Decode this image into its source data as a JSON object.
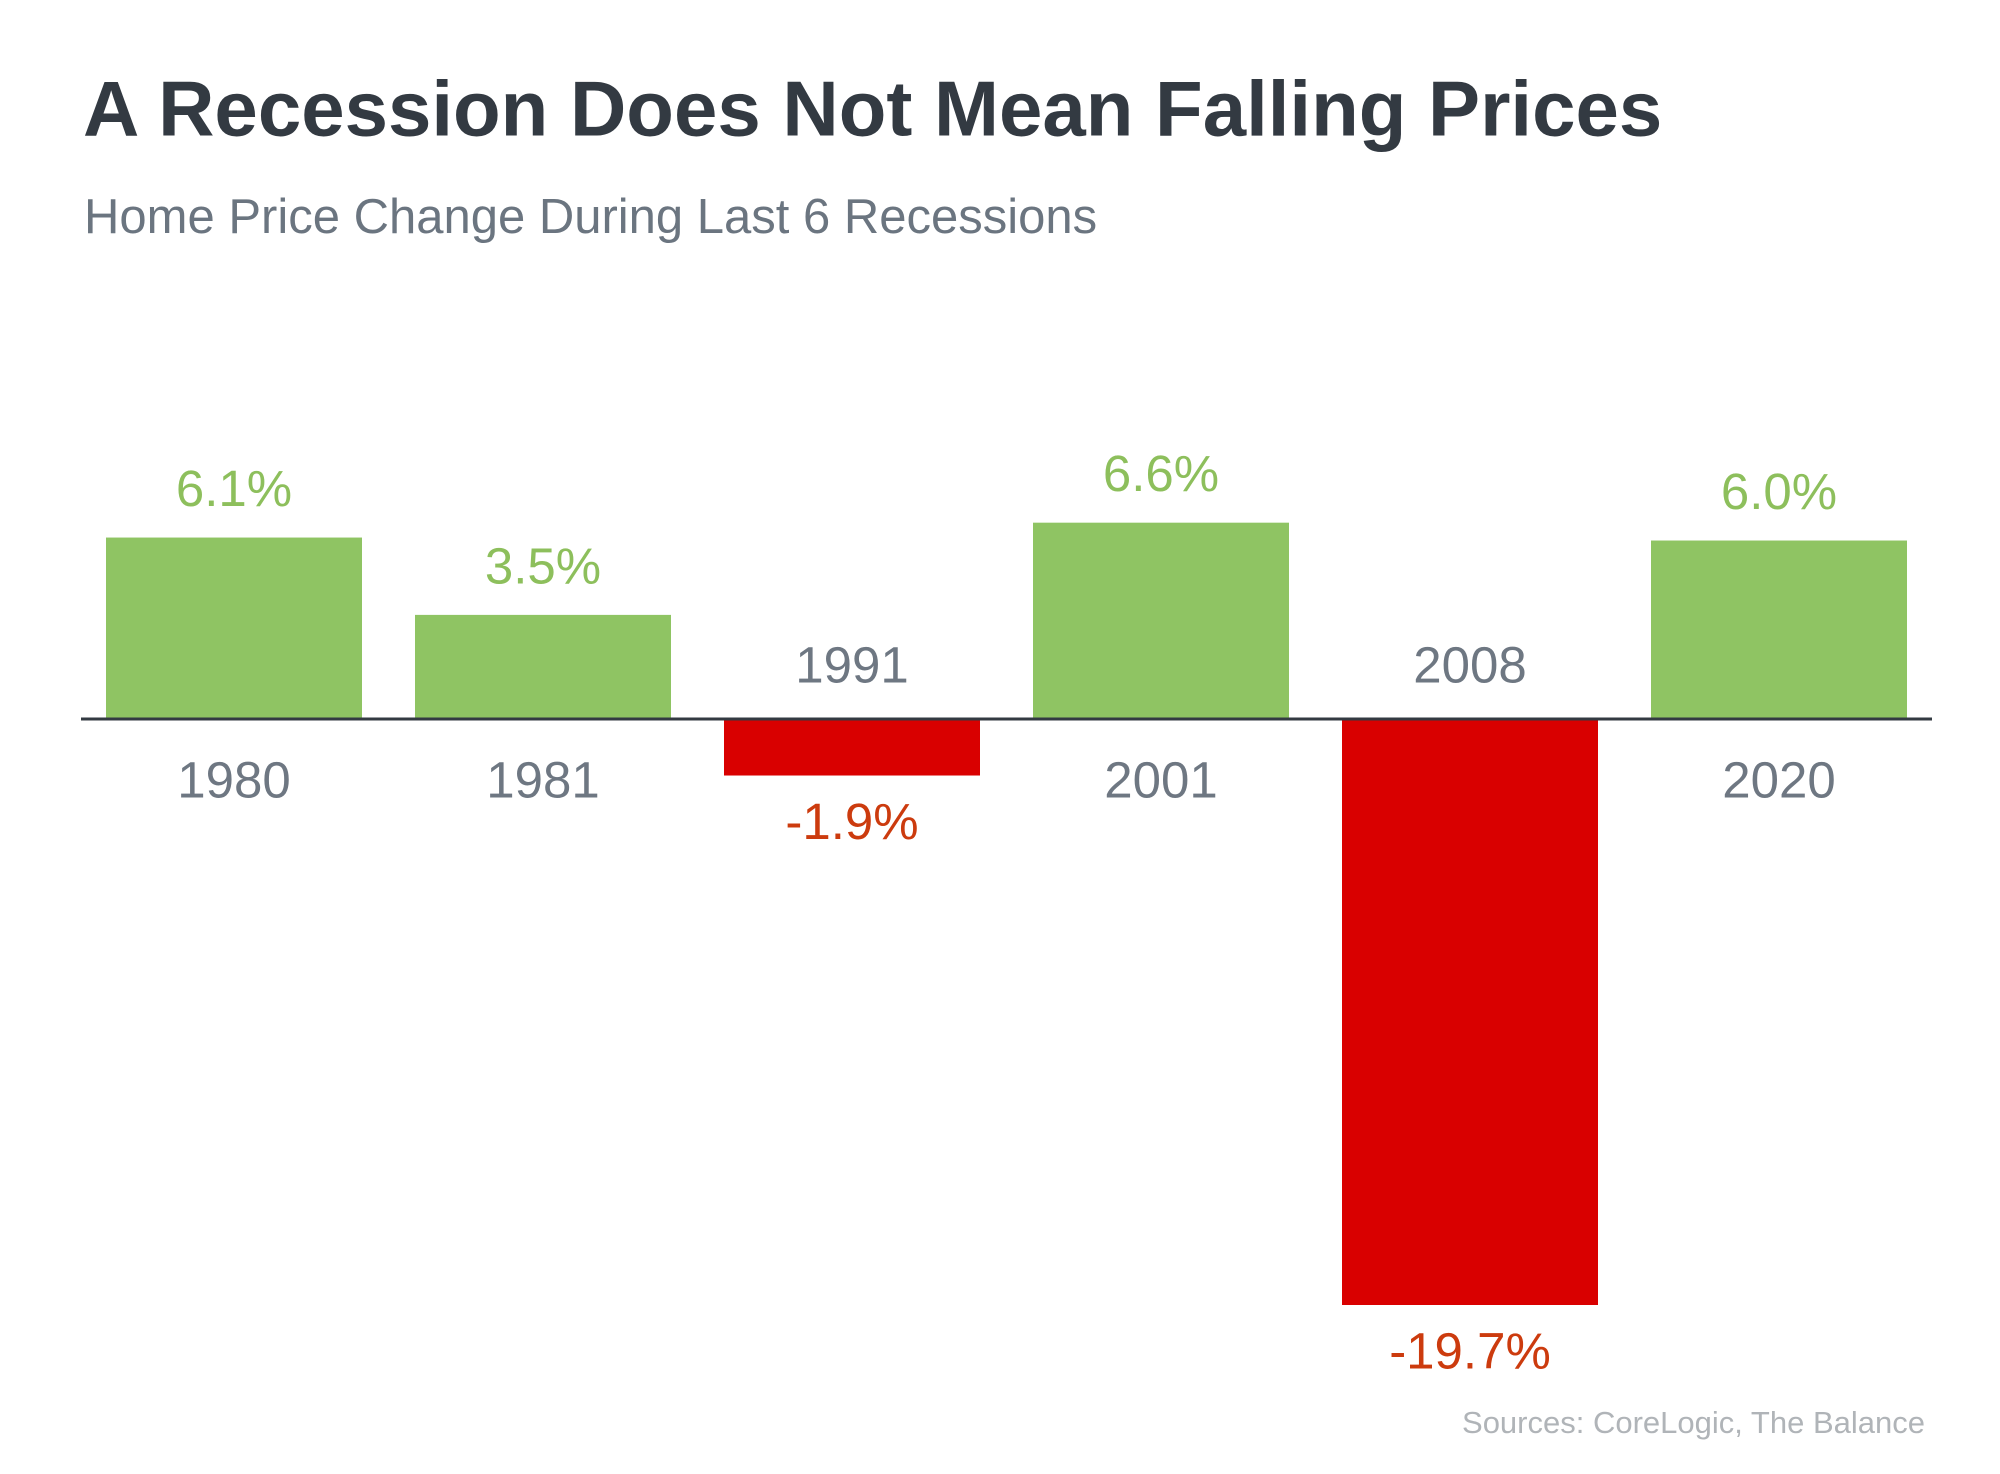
{
  "chart_data": {
    "type": "bar",
    "title": "A Recession Does Not Mean Falling Prices",
    "subtitle": "Home Price Change During Last 6 Recessions",
    "source": "Sources: CoreLogic, The Balance",
    "categories": [
      "1980",
      "1981",
      "1991",
      "2001",
      "2008",
      "2020"
    ],
    "values": [
      6.1,
      3.5,
      -1.9,
      6.6,
      -19.7,
      6.0
    ],
    "value_labels": [
      "6.1%",
      "3.5%",
      "-1.9%",
      "6.6%",
      "-19.7%",
      "6.0%"
    ],
    "colors": [
      "#8fc463",
      "#8fc463",
      "#d90000",
      "#8fc463",
      "#d90000",
      "#8fc463"
    ],
    "label_colors": [
      "#8dbf5c",
      "#8dbf5c",
      "#cc3b0e",
      "#8dbf5c",
      "#cc3b0e",
      "#8dbf5c"
    ]
  }
}
